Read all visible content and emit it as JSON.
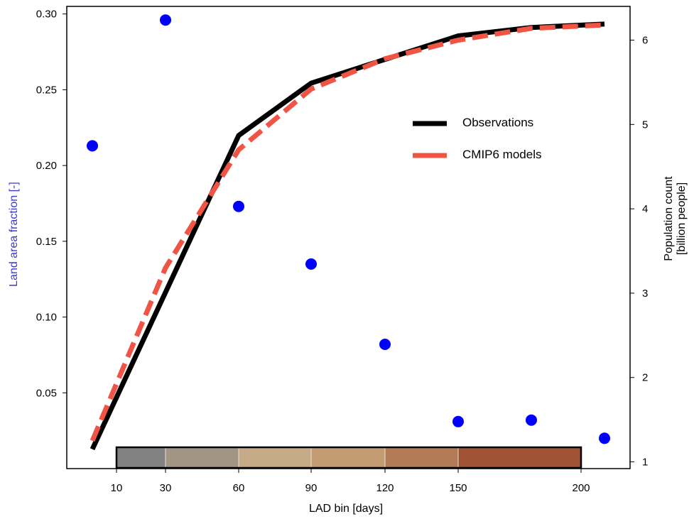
{
  "chart_data": {
    "type": "line",
    "xlabel": "LAD bin [days]",
    "x_ticks": [
      10,
      30,
      60,
      90,
      120,
      150,
      200
    ],
    "ylabel_left": "Land area fraction [-]",
    "ylabel_right_line1": "Population count",
    "ylabel_right_line2": "[billion people]",
    "left_axis": {
      "ylim": [
        0.0,
        0.305
      ],
      "ticks": [
        0.05,
        0.1,
        0.15,
        0.2,
        0.25,
        0.3
      ]
    },
    "right_axis": {
      "ylim": [
        0.92,
        6.4
      ],
      "ticks": [
        1,
        2,
        3,
        4,
        5,
        6
      ]
    },
    "scatter": {
      "axis": "left",
      "color": "#0000ff",
      "x": [
        10,
        30,
        60,
        90,
        120,
        150,
        170,
        200
      ],
      "y": [
        0.213,
        0.296,
        0.173,
        0.135,
        0.082,
        0.031,
        0.032,
        0.02
      ]
    },
    "series": [
      {
        "name": "Observations",
        "axis": "right",
        "color": "#000000",
        "style": "solid",
        "x": [
          10,
          60,
          90,
          150,
          170,
          200
        ],
        "y": [
          1.15,
          4.87,
          5.49,
          6.05,
          6.15,
          6.19
        ]
      },
      {
        "name": "CMIP6 models",
        "axis": "right",
        "color": "#f05444",
        "style": "dashed",
        "x": [
          10,
          30,
          60,
          90,
          120,
          150,
          170,
          200
        ],
        "y": [
          1.25,
          3.3,
          4.7,
          5.42,
          5.78,
          6.0,
          6.14,
          6.18
        ]
      }
    ],
    "colorbar": {
      "bins": [
        "10-30",
        "30-60",
        "60-90",
        "90-120",
        "120-150",
        "150-200"
      ],
      "colors": [
        "#828282",
        "#a39584",
        "#c6aa88",
        "#c39c74",
        "#b27a55",
        "#a05234"
      ]
    },
    "legend_position": "upper-right",
    "grid": false
  }
}
